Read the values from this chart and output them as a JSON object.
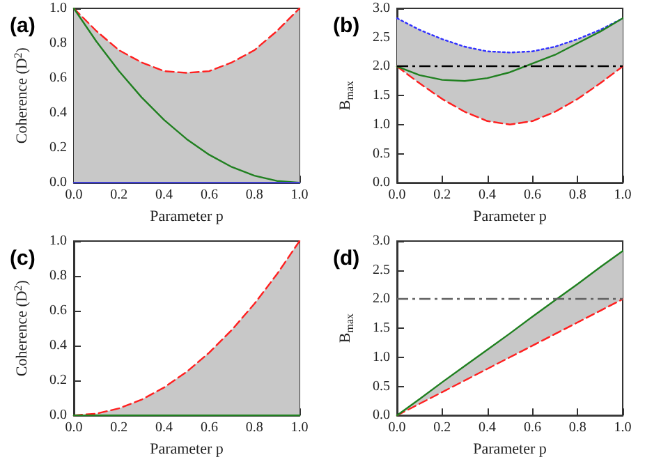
{
  "chart_data": [
    {
      "type": "line",
      "title": "(a)",
      "xlabel": "Parameter p",
      "ylabel": "Coherence (D$^{2}$)",
      "x": [
        0,
        0.1,
        0.2,
        0.3,
        0.4,
        0.5,
        0.6,
        0.7,
        0.8,
        0.9,
        1
      ],
      "xlim": [
        0,
        1
      ],
      "ylim": [
        0,
        1
      ],
      "xticks": [
        {
          "value": 0,
          "label": "0.0"
        },
        {
          "value": 0.2,
          "label": "0.2"
        },
        {
          "value": 0.4,
          "label": "0.4"
        },
        {
          "value": 0.6,
          "label": "0.6"
        },
        {
          "value": 0.8,
          "label": "0.8"
        },
        {
          "value": 1,
          "label": "1.0"
        }
      ],
      "yticks": [
        {
          "value": 0,
          "label": "0.0"
        },
        {
          "value": 0.2,
          "label": "0.2"
        },
        {
          "value": 0.4,
          "label": "0.4"
        },
        {
          "value": 0.6,
          "label": "0.6"
        },
        {
          "value": 0.8,
          "label": "0.8"
        },
        {
          "value": 1,
          "label": "1.0"
        }
      ],
      "grid": false,
      "marker": "none",
      "series": [
        {
          "color": "#ff2020",
          "line_style": "dashed",
          "values": [
            1,
            0.87,
            0.76,
            0.69,
            0.64,
            0.63,
            0.64,
            0.69,
            0.76,
            0.87,
            1
          ],
          "lower": [
            0,
            0,
            0,
            0,
            0,
            0,
            0,
            0,
            0,
            0,
            0
          ],
          "upper": [
            1,
            0.87,
            0.76,
            0.69,
            0.64,
            0.63,
            0.64,
            0.69,
            0.76,
            0.87,
            1
          ]
        },
        {
          "color": "#208020",
          "line_style": "solid",
          "values": [
            1,
            0.81,
            0.64,
            0.49,
            0.36,
            0.25,
            0.16,
            0.09,
            0.04,
            0.01,
            0
          ]
        },
        {
          "color": "#4040d0",
          "line_style": "solid",
          "values": [
            0,
            0,
            0,
            0,
            0,
            0,
            0,
            0,
            0,
            0,
            0
          ]
        }
      ]
    },
    {
      "type": "line",
      "title": "(b)",
      "xlabel": "Parameter p",
      "ylabel": "B$_{max}$",
      "x": [
        0,
        0.1,
        0.2,
        0.3,
        0.4,
        0.5,
        0.6,
        0.7,
        0.8,
        0.9,
        1
      ],
      "xlim": [
        0,
        1
      ],
      "ylim": [
        0,
        3
      ],
      "xticks": [
        {
          "value": 0,
          "label": "0.0"
        },
        {
          "value": 0.2,
          "label": "0.2"
        },
        {
          "value": 0.4,
          "label": "0.4"
        },
        {
          "value": 0.6,
          "label": "0.6"
        },
        {
          "value": 0.8,
          "label": "0.8"
        },
        {
          "value": 1,
          "label": "1.0"
        }
      ],
      "yticks": [
        {
          "value": 0,
          "label": "0.0"
        },
        {
          "value": 0.5,
          "label": "0.5"
        },
        {
          "value": 1,
          "label": "1.0"
        },
        {
          "value": 1.5,
          "label": "1.5"
        },
        {
          "value": 2,
          "label": "2.0"
        },
        {
          "value": 2.5,
          "label": "2.5"
        },
        {
          "value": 3,
          "label": "3.0"
        }
      ],
      "grid": false,
      "marker": "none",
      "ref_lines": [
        {
          "axis": "y",
          "value": 2,
          "label": null,
          "color": "#000000",
          "line_style": "dashdot"
        }
      ],
      "series": [
        {
          "color": "#ff2020",
          "line_style": "dashed",
          "values": [
            2,
            1.71,
            1.44,
            1.22,
            1.06,
            1,
            1.06,
            1.22,
            1.44,
            1.71,
            2
          ],
          "lower": [
            2,
            1.71,
            1.44,
            1.22,
            1.06,
            1,
            1.06,
            1.22,
            1.44,
            1.71,
            2
          ],
          "upper": [
            2.83,
            2.63,
            2.47,
            2.34,
            2.26,
            2.24,
            2.26,
            2.34,
            2.47,
            2.63,
            2.83
          ]
        },
        {
          "color": "#3030ff",
          "line_style": "dotted",
          "values": [
            2.83,
            2.63,
            2.47,
            2.34,
            2.26,
            2.24,
            2.26,
            2.34,
            2.47,
            2.63,
            2.83
          ]
        },
        {
          "color": "#208020",
          "line_style": "solid",
          "values": [
            2,
            1.85,
            1.77,
            1.75,
            1.8,
            1.9,
            2.05,
            2.2,
            2.4,
            2.6,
            2.83
          ]
        }
      ]
    },
    {
      "type": "line",
      "title": "(c)",
      "xlabel": "Parameter p",
      "ylabel": "Coherence (D$^{2}$)",
      "x": [
        0,
        0.1,
        0.2,
        0.3,
        0.4,
        0.5,
        0.6,
        0.7,
        0.8,
        0.9,
        1
      ],
      "xlim": [
        0,
        1
      ],
      "ylim": [
        0,
        1
      ],
      "xticks": [
        {
          "value": 0,
          "label": "0.0"
        },
        {
          "value": 0.2,
          "label": "0.2"
        },
        {
          "value": 0.4,
          "label": "0.4"
        },
        {
          "value": 0.6,
          "label": "0.6"
        },
        {
          "value": 0.8,
          "label": "0.8"
        },
        {
          "value": 1,
          "label": "1.0"
        }
      ],
      "yticks": [
        {
          "value": 0,
          "label": "0.0"
        },
        {
          "value": 0.2,
          "label": "0.2"
        },
        {
          "value": 0.4,
          "label": "0.4"
        },
        {
          "value": 0.6,
          "label": "0.6"
        },
        {
          "value": 0.8,
          "label": "0.8"
        },
        {
          "value": 1,
          "label": "1.0"
        }
      ],
      "grid": false,
      "marker": "none",
      "series": [
        {
          "color": "#ff2020",
          "line_style": "dashed",
          "values": [
            0,
            0.01,
            0.04,
            0.09,
            0.16,
            0.25,
            0.36,
            0.49,
            0.64,
            0.81,
            1
          ],
          "lower": [
            0,
            0,
            0,
            0,
            0,
            0,
            0,
            0,
            0,
            0,
            0
          ],
          "upper": [
            0,
            0.01,
            0.04,
            0.09,
            0.16,
            0.25,
            0.36,
            0.49,
            0.64,
            0.81,
            1
          ]
        },
        {
          "color": "#208020",
          "line_style": "solid",
          "values": [
            0,
            0,
            0,
            0,
            0,
            0,
            0,
            0,
            0,
            0,
            0
          ]
        }
      ]
    },
    {
      "type": "line",
      "title": "(d)",
      "xlabel": "Parameter p",
      "ylabel": "B$_{max}$",
      "x": [
        0,
        0.1,
        0.2,
        0.3,
        0.4,
        0.5,
        0.6,
        0.7,
        0.8,
        0.9,
        1
      ],
      "xlim": [
        0,
        1
      ],
      "ylim": [
        0,
        3
      ],
      "xticks": [
        {
          "value": 0,
          "label": "0.0"
        },
        {
          "value": 0.2,
          "label": "0.2"
        },
        {
          "value": 0.4,
          "label": "0.4"
        },
        {
          "value": 0.6,
          "label": "0.6"
        },
        {
          "value": 0.8,
          "label": "0.8"
        },
        {
          "value": 1,
          "label": "1.0"
        }
      ],
      "yticks": [
        {
          "value": 0,
          "label": "0.0"
        },
        {
          "value": 0.5,
          "label": "0.5"
        },
        {
          "value": 1,
          "label": "1.0"
        },
        {
          "value": 1.5,
          "label": "1.5"
        },
        {
          "value": 2,
          "label": "2.0"
        },
        {
          "value": 2.5,
          "label": "2.5"
        },
        {
          "value": 3,
          "label": "3.0"
        }
      ],
      "grid": false,
      "marker": "none",
      "ref_lines": [
        {
          "axis": "y",
          "value": 2,
          "label": null,
          "color": "#606060",
          "line_style": "dashdot"
        }
      ],
      "series": [
        {
          "color": "#ff2020",
          "line_style": "dashed",
          "values": [
            0,
            0.2,
            0.4,
            0.6,
            0.8,
            1,
            1.2,
            1.4,
            1.6,
            1.8,
            2
          ],
          "lower": [
            0,
            0.2,
            0.4,
            0.6,
            0.8,
            1,
            1.2,
            1.4,
            1.6,
            1.8,
            2
          ],
          "upper": [
            0,
            0.28,
            0.57,
            0.85,
            1.13,
            1.41,
            1.7,
            1.98,
            2.26,
            2.55,
            2.83
          ]
        },
        {
          "color": "#208020",
          "line_style": "solid",
          "values": [
            0,
            0.28,
            0.57,
            0.85,
            1.13,
            1.41,
            1.7,
            1.98,
            2.26,
            2.55,
            2.83
          ]
        }
      ]
    }
  ]
}
